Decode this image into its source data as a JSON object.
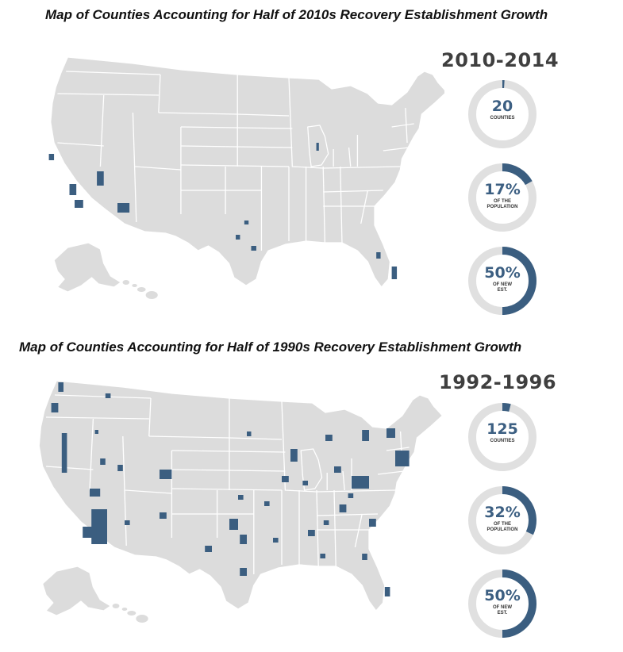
{
  "colors": {
    "state_fill": "#dcdcdc",
    "state_border": "#ffffff",
    "highlight": "#3b5e80",
    "ring_track": "#e0e0e0"
  },
  "panels": [
    {
      "title": "Map of Counties Accounting for Half of 2010s Recovery Establishment Growth",
      "period": "2010-2014",
      "stats": [
        {
          "value": "20",
          "caption": "COUNTIES",
          "fraction": 0.01
        },
        {
          "value": "17%",
          "caption": "OF THE\nPOPULATION",
          "fraction": 0.17
        },
        {
          "value": "50%",
          "caption": "OF NEW\nEST.",
          "fraction": 0.5
        }
      ]
    },
    {
      "title": "Map of Counties Accounting for Half of 1990s Recovery Establishment Growth",
      "period": "1992-1996",
      "stats": [
        {
          "value": "125",
          "caption": "COUNTIES",
          "fraction": 0.04
        },
        {
          "value": "32%",
          "caption": "OF THE\nPOPULATION",
          "fraction": 0.32
        },
        {
          "value": "50%",
          "caption": "OF NEW\nEST.",
          "fraction": 0.5
        }
      ]
    }
  ]
}
